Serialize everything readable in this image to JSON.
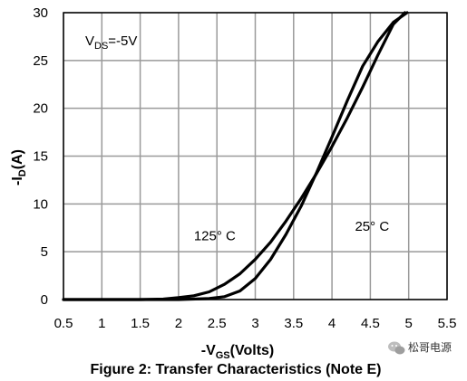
{
  "chart_data": {
    "type": "line",
    "caption": "Figure 2: Transfer Characteristics (Note E)",
    "xlabel": {
      "prefix": "-V",
      "sub": "GS",
      "suffix": "(Volts)"
    },
    "ylabel": {
      "prefix": "-I",
      "sub": "D",
      "suffix": "(A)"
    },
    "xlim": [
      0.5,
      5.5
    ],
    "ylim": [
      0,
      30
    ],
    "x_ticks": [
      0.5,
      1,
      1.5,
      2,
      2.5,
      3,
      3.5,
      4,
      4.5,
      5,
      5.5
    ],
    "y_ticks": [
      0,
      5,
      10,
      15,
      20,
      25,
      30
    ],
    "grid": true,
    "condition": {
      "prefix": "V",
      "sub": "DS",
      "suffix": "=-5V"
    },
    "series": [
      {
        "name": "125° C",
        "x": [
          0.5,
          1.5,
          1.8,
          2.0,
          2.2,
          2.4,
          2.6,
          2.8,
          3.0,
          3.2,
          3.4,
          3.6,
          3.8,
          4.0,
          4.2,
          4.4,
          4.6,
          4.8,
          4.95
        ],
        "y": [
          0,
          0,
          0.05,
          0.2,
          0.4,
          0.8,
          1.6,
          2.7,
          4.2,
          6.0,
          8.2,
          10.6,
          13.2,
          16.0,
          19.0,
          22.2,
          25.6,
          28.8,
          30.0
        ]
      },
      {
        "name": "25° C",
        "x": [
          0.5,
          2.0,
          2.4,
          2.6,
          2.8,
          3.0,
          3.2,
          3.4,
          3.6,
          3.8,
          4.0,
          4.2,
          4.4,
          4.6,
          4.8,
          4.98
        ],
        "y": [
          0,
          0,
          0.1,
          0.3,
          0.9,
          2.2,
          4.2,
          6.8,
          9.8,
          13.3,
          17.0,
          20.8,
          24.4,
          27.0,
          29.0,
          30.0
        ]
      }
    ],
    "annotations": [
      {
        "text": "125° C",
        "x": 2.2,
        "y": 6.2
      },
      {
        "text": "25° C",
        "x": 4.3,
        "y": 7.2
      }
    ]
  },
  "watermark": {
    "icon": "wechat-icon",
    "text": "松哥电源"
  }
}
